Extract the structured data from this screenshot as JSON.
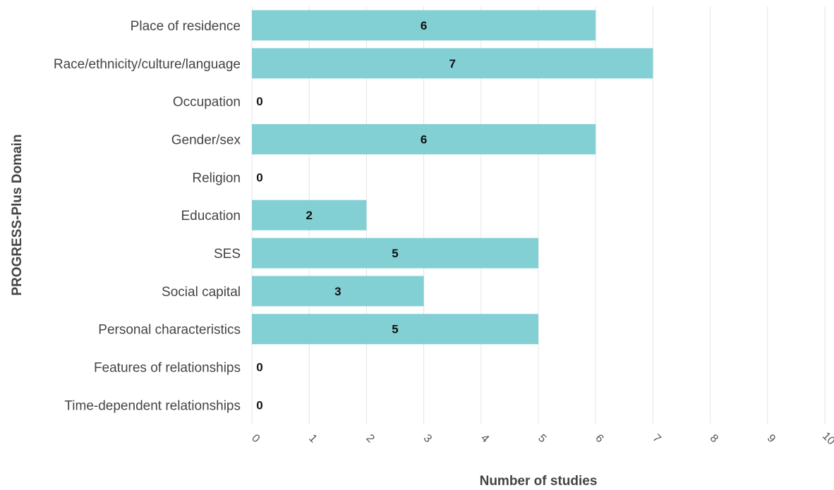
{
  "chart_data": {
    "type": "bar",
    "orientation": "horizontal",
    "categories": [
      "Place of residence",
      "Race/ethnicity/culture/language",
      "Occupation",
      "Gender/sex",
      "Religion",
      "Education",
      "SES",
      "Social capital",
      "Personal characteristics",
      "Features of relationships",
      "Time-dependent relationships"
    ],
    "values": [
      6,
      7,
      0,
      6,
      0,
      2,
      5,
      3,
      5,
      0,
      0
    ],
    "xlabel": "Number of studies",
    "ylabel": "PROGRESS-Plus Domain",
    "xlim": [
      0,
      10
    ],
    "x_ticks": [
      0,
      1,
      2,
      3,
      4,
      5,
      6,
      7,
      8,
      9,
      10
    ],
    "grid": "vertical",
    "data_labels": true,
    "legend": "none",
    "colors": {
      "bar": "#83d0d4",
      "grid": "#e4e4e4"
    }
  }
}
